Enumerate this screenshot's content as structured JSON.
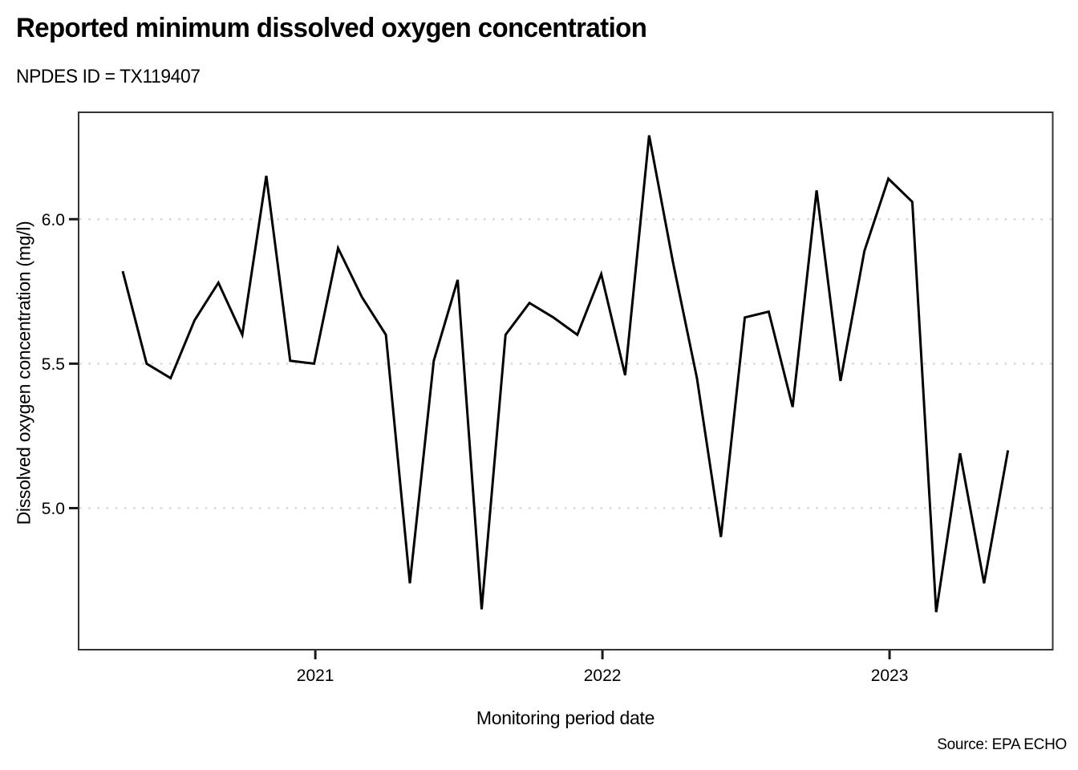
{
  "header": {
    "title": "Reported minimum dissolved oxygen concentration",
    "subtitle": "NPDES ID = TX119407"
  },
  "footer": {
    "source": "Source: EPA ECHO"
  },
  "chart_data": {
    "type": "line",
    "title": "Reported minimum dissolved oxygen concentration",
    "subtitle": "NPDES ID = TX119407",
    "xlabel": "Monitoring period date",
    "ylabel": "Dissolved oxygen concentration (mg/l)",
    "source": "Source: EPA ECHO",
    "x": [
      "2020-04",
      "2020-05",
      "2020-06",
      "2020-07",
      "2020-08",
      "2020-09",
      "2020-10",
      "2020-11",
      "2020-12",
      "2021-01",
      "2021-02",
      "2021-03",
      "2021-04",
      "2021-05",
      "2021-06",
      "2021-07",
      "2021-08",
      "2021-09",
      "2021-10",
      "2021-11",
      "2021-12",
      "2022-01",
      "2022-02",
      "2022-03",
      "2022-04",
      "2022-05",
      "2022-06",
      "2022-07",
      "2022-08",
      "2022-09",
      "2022-10",
      "2022-11",
      "2022-12",
      "2023-01",
      "2023-02",
      "2023-03",
      "2023-04",
      "2023-05"
    ],
    "values": [
      5.82,
      5.5,
      5.45,
      5.65,
      5.78,
      5.6,
      6.15,
      5.51,
      5.5,
      5.9,
      5.73,
      5.6,
      4.74,
      5.51,
      5.79,
      4.65,
      5.6,
      5.71,
      5.66,
      5.6,
      5.81,
      5.46,
      6.29,
      5.85,
      5.45,
      4.9,
      5.66,
      5.68,
      5.35,
      6.1,
      5.44,
      5.89,
      6.14,
      6.06,
      4.64,
      5.19,
      4.74,
      5.2
    ],
    "y_ticks": [
      6.0,
      5.5,
      5.0
    ],
    "y_tick_labels": [
      "6.0",
      "5.5",
      "5.0"
    ],
    "x_ticks": [
      {
        "label": "2021",
        "t": 8.05
      },
      {
        "label": "2022",
        "t": 20.05
      },
      {
        "label": "2023",
        "t": 32.05
      }
    ],
    "ylim": [
      4.51,
      6.37
    ],
    "grid": "horizontal dotted",
    "legend": "none",
    "line_color": "#000000",
    "grid_color": "#d8d8d8",
    "axis_color": "#333333",
    "tick_color": "#1a1a1a"
  }
}
